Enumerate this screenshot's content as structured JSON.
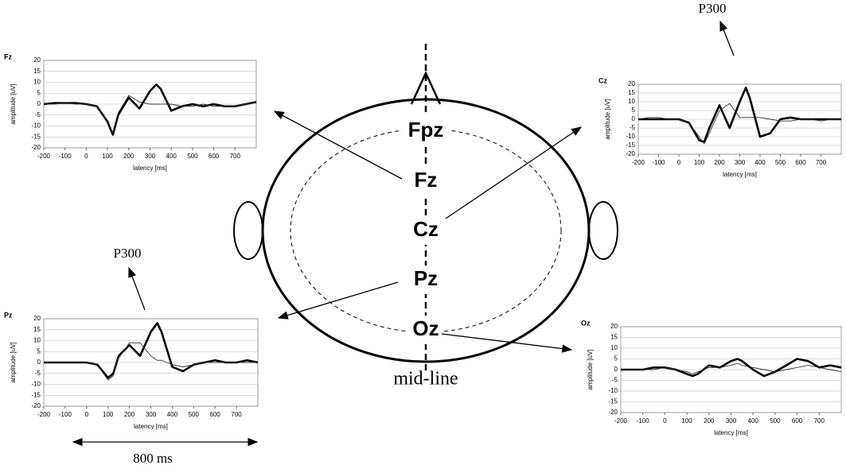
{
  "chart_data": [
    {
      "type": "line",
      "title": "Fz",
      "xlabel": "latency [ms]",
      "ylabel": "amplitude [uV]",
      "xlim": [
        -200,
        800
      ],
      "xticks": [
        -200,
        -100,
        0,
        100,
        200,
        300,
        400,
        500,
        600,
        700
      ],
      "ylim": [
        -20,
        20
      ],
      "yticks": [
        -20,
        -15,
        -10,
        -5,
        0,
        5,
        10,
        15,
        20
      ],
      "grid": true,
      "x": [
        -200,
        -150,
        -100,
        -50,
        0,
        50,
        100,
        125,
        150,
        200,
        250,
        300,
        330,
        350,
        400,
        450,
        500,
        550,
        600,
        650,
        700,
        750,
        800
      ],
      "series": [
        {
          "color": "#000000",
          "width": 2.6,
          "values": [
            0,
            0.5,
            0.5,
            0.5,
            0,
            -1,
            -8,
            -14,
            -5,
            3,
            -2,
            6,
            9,
            7,
            -3,
            -1,
            0,
            -1,
            0,
            -1,
            -1,
            0,
            1
          ]
        },
        {
          "color": "#333333",
          "width": 0.9,
          "values": [
            0,
            0,
            0.5,
            0,
            0,
            -1,
            -8,
            -13,
            -4,
            4,
            1,
            0,
            0,
            0,
            0,
            -1,
            -1,
            0,
            -1,
            -1,
            -1,
            0,
            1
          ]
        }
      ]
    },
    {
      "type": "line",
      "title": "Cz",
      "xlabel": "latency [ms]",
      "ylabel": "amplitude [uV]",
      "xlim": [
        -200,
        800
      ],
      "xticks": [
        -200,
        -100,
        0,
        100,
        200,
        300,
        400,
        500,
        600,
        700
      ],
      "ylim": [
        -20,
        20
      ],
      "yticks": [
        -20,
        -15,
        -10,
        -5,
        0,
        5,
        10,
        15,
        20
      ],
      "grid": true,
      "x": [
        -200,
        -150,
        -100,
        -50,
        0,
        50,
        100,
        125,
        150,
        200,
        250,
        300,
        330,
        350,
        400,
        450,
        500,
        550,
        600,
        650,
        700,
        750,
        800
      ],
      "series": [
        {
          "color": "#000000",
          "width": 2.6,
          "values": [
            0,
            0,
            0,
            0,
            0,
            -2,
            -12,
            -13,
            -5,
            8,
            -5,
            10,
            18,
            12,
            -10,
            -8,
            0,
            1,
            0,
            0,
            0,
            0,
            0
          ]
        },
        {
          "color": "#333333",
          "width": 0.9,
          "values": [
            0,
            1,
            1,
            0,
            0,
            -2,
            -10,
            -14,
            -8,
            5,
            9,
            1,
            1,
            1,
            1,
            0,
            -1,
            -1,
            0,
            0,
            -1,
            0,
            0
          ]
        }
      ]
    },
    {
      "type": "line",
      "title": "Pz",
      "xlabel": "latency [ms]",
      "ylabel": "amplitude [uV]",
      "xlim": [
        -200,
        800
      ],
      "xticks": [
        -200,
        -100,
        0,
        100,
        200,
        300,
        400,
        500,
        600,
        700
      ],
      "ylim": [
        -20,
        20
      ],
      "yticks": [
        -20,
        -15,
        -10,
        -5,
        0,
        5,
        10,
        15,
        20
      ],
      "grid": true,
      "x": [
        -200,
        -150,
        -100,
        -50,
        0,
        50,
        100,
        125,
        150,
        200,
        250,
        300,
        330,
        350,
        400,
        450,
        500,
        550,
        600,
        650,
        700,
        750,
        800
      ],
      "series": [
        {
          "color": "#000000",
          "width": 2.6,
          "values": [
            0,
            0,
            0,
            0,
            0,
            -1,
            -7,
            -5,
            3,
            8,
            3,
            14,
            18,
            14,
            -2,
            -4,
            -1,
            0,
            1,
            0,
            0,
            1,
            0
          ]
        },
        {
          "color": "#333333",
          "width": 0.9,
          "values": [
            0,
            0,
            0,
            0,
            0,
            -1,
            -8,
            -6,
            2,
            9,
            9,
            3,
            1,
            1,
            -1,
            -2,
            -1,
            0,
            0,
            0,
            0,
            0,
            0
          ]
        }
      ]
    },
    {
      "type": "line",
      "title": "Oz",
      "xlabel": "latency [ms]",
      "ylabel": "amplitude [uV]",
      "xlim": [
        -200,
        800
      ],
      "xticks": [
        -200,
        -100,
        0,
        100,
        200,
        300,
        400,
        500,
        600,
        700
      ],
      "ylim": [
        -20,
        20
      ],
      "yticks": [
        -20,
        -15,
        -10,
        -5,
        0,
        5,
        10,
        15,
        20
      ],
      "grid": true,
      "x": [
        -200,
        -150,
        -100,
        -50,
        0,
        50,
        100,
        125,
        150,
        200,
        250,
        300,
        330,
        350,
        400,
        450,
        500,
        550,
        600,
        650,
        700,
        750,
        800
      ],
      "series": [
        {
          "color": "#000000",
          "width": 2.6,
          "values": [
            0,
            0,
            0,
            1,
            1,
            0,
            -2,
            -3,
            -2,
            2,
            1,
            4,
            5,
            4,
            0,
            -3,
            -1,
            2,
            5,
            4,
            1,
            2,
            1
          ]
        },
        {
          "color": "#333333",
          "width": 0.9,
          "values": [
            0,
            0,
            0,
            0,
            1,
            0,
            -1,
            -2,
            -1,
            1,
            1,
            2,
            3,
            2,
            1,
            0,
            -1,
            0,
            1,
            2,
            1,
            0,
            -1
          ]
        }
      ]
    }
  ],
  "diagram": {
    "electrodes": [
      "Fpz",
      "Fz",
      "Cz",
      "Pz",
      "Oz"
    ],
    "midline": "mid-line",
    "annotations": [
      "P300",
      "P300"
    ],
    "duration": "800 ms"
  }
}
